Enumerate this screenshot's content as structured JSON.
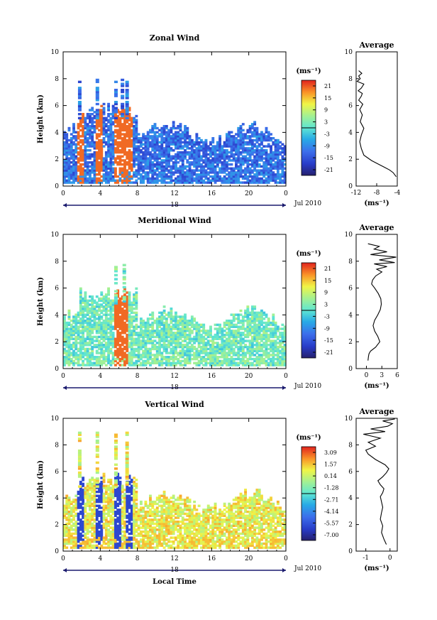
{
  "xlabel": "Local Time",
  "date_label": "Jul 2010",
  "day_label": "18",
  "chart_data": [
    {
      "type": "heatmap",
      "title": "Zonal Wind",
      "ylabel": "Height (km)",
      "xlim": [
        0,
        24
      ],
      "ylim": [
        0,
        10
      ],
      "xticks": [
        "0",
        "4",
        "8",
        "12",
        "16",
        "20",
        "0"
      ],
      "yticks": [
        "0",
        "2",
        "4",
        "6",
        "8",
        "10"
      ],
      "colorbar": {
        "unit": "(ms⁻¹)",
        "ticks": [
          "21",
          "15",
          "9",
          "3",
          "-3",
          "-9",
          "-15",
          "-21"
        ],
        "range": [
          -24,
          24
        ]
      },
      "data_extent": {
        "x": [
          0,
          24
        ],
        "y": [
          0.2,
          5
        ],
        "peak_y": 8
      },
      "dominant_value": -12,
      "strong_columns_x": [
        1.8,
        3.7,
        5.7,
        6.4,
        6.9
      ],
      "avg_profile": {
        "title": "Average",
        "xlabel": "(ms⁻¹)",
        "xlim": [
          -12,
          -4
        ],
        "ylim": [
          0,
          10
        ],
        "xticks": [
          "-12",
          "-8",
          "-4"
        ],
        "yticks": [
          "0",
          "2",
          "4",
          "6",
          "8",
          "10"
        ],
        "x": [
          -4.2,
          -4.8,
          -5.5,
          -6.5,
          -7.5,
          -9,
          -10.5,
          -11,
          -11.3,
          -11,
          -10.5,
          -11.2,
          -10.8,
          -11.3,
          -10.7,
          -11.5,
          -11,
          -10.8,
          -11.6,
          -11,
          -10.5,
          -11.8,
          -11.2,
          -11.5,
          -10.9,
          -11.5
        ],
        "y": [
          0.7,
          1,
          1.2,
          1.4,
          1.6,
          1.9,
          2.3,
          2.8,
          3.3,
          3.8,
          4.3,
          4.8,
          5.3,
          5.7,
          6.1,
          6.4,
          6.7,
          6.9,
          7.1,
          7.3,
          7.6,
          7.8,
          8.0,
          8.2,
          8.4,
          8.6
        ]
      }
    },
    {
      "type": "heatmap",
      "title": "Meridional Wind",
      "ylabel": "Height (km)",
      "xlim": [
        0,
        24
      ],
      "ylim": [
        0,
        10
      ],
      "xticks": [
        "0",
        "4",
        "8",
        "12",
        "16",
        "20",
        "0"
      ],
      "yticks": [
        "0",
        "2",
        "4",
        "6",
        "8",
        "10"
      ],
      "colorbar": {
        "unit": "(ms⁻¹)",
        "ticks": [
          "21",
          "15",
          "9",
          "3",
          "-3",
          "-9",
          "-15",
          "-21"
        ],
        "range": [
          -24,
          24
        ]
      },
      "data_extent": {
        "x": [
          0,
          24
        ],
        "y": [
          0.2,
          4.8
        ],
        "peak_y": 7.7
      },
      "dominant_value": 2,
      "strong_columns_x": [
        5.7,
        6.6
      ],
      "avg_profile": {
        "title": "Average",
        "xlabel": "(ms⁻¹)",
        "xlim": [
          -2,
          6
        ],
        "ylim": [
          0,
          10
        ],
        "xticks": [
          "0",
          "3",
          "6"
        ],
        "yticks": [
          "0",
          "2",
          "4",
          "6",
          "8",
          "10"
        ],
        "x": [
          0.3,
          0.4,
          0.5,
          0.8,
          1.8,
          2.6,
          2.2,
          1.6,
          1.3,
          1.6,
          2.2,
          2.7,
          2.9,
          2.8,
          2.3,
          1.6,
          1.0,
          1.2,
          1.8,
          3,
          2,
          4,
          1.5,
          5.5,
          2.5,
          5.8,
          0.8,
          4,
          1.5,
          2.5,
          0.3
        ],
        "y": [
          0.6,
          0.9,
          1.1,
          1.3,
          1.6,
          2.0,
          2.4,
          2.8,
          3.2,
          3.6,
          4.0,
          4.4,
          4.8,
          5.2,
          5.6,
          6.0,
          6.3,
          6.6,
          6.9,
          7.2,
          7.4,
          7.6,
          7.8,
          7.9,
          8.1,
          8.3,
          8.5,
          8.7,
          8.9,
          9.1,
          9.3
        ]
      }
    },
    {
      "type": "heatmap",
      "title": "Vertical Wind",
      "ylabel": "Height (km)",
      "xlim": [
        0,
        24
      ],
      "ylim": [
        0,
        10
      ],
      "xticks": [
        "0",
        "4",
        "8",
        "12",
        "16",
        "20",
        "0"
      ],
      "yticks": [
        "0",
        "2",
        "4",
        "6",
        "8",
        "10"
      ],
      "colorbar": {
        "unit": "(ms⁻¹)",
        "ticks": [
          "3.09",
          "1.57",
          "0.14",
          "-1.28",
          "-2.71",
          "-4.14",
          "-5.57",
          "-7.00"
        ],
        "range": [
          -7.7,
          3.8
        ]
      },
      "data_extent": {
        "x": [
          0,
          24
        ],
        "y": [
          0.2,
          4.8
        ],
        "peak_y": 9
      },
      "dominant_value": 0.8,
      "strong_columns_x": [
        1.8,
        3.7,
        5.7,
        6.9
      ],
      "avg_profile": {
        "title": "Average",
        "xlabel": "(ms⁻¹)",
        "xlim": [
          -1.4,
          0.3
        ],
        "ylim": [
          0,
          10
        ],
        "xticks": [
          "-1",
          "0"
        ],
        "yticks": [
          "0",
          "2",
          "4",
          "6",
          "8",
          "10"
        ],
        "x": [
          -0.15,
          -0.25,
          -0.35,
          -0.3,
          -0.4,
          -0.35,
          -0.3,
          -0.35,
          -0.4,
          -0.3,
          -0.25,
          -0.4,
          -0.5,
          -0.3,
          -0.15,
          -0.05,
          -0.2,
          -0.6,
          -0.9,
          -1.0,
          -0.6,
          -0.9,
          -0.4,
          -1.1,
          -0.2,
          -0.8,
          -0.1,
          0.1,
          -0.3,
          0.2
        ],
        "y": [
          0.5,
          0.9,
          1.4,
          1.9,
          2.4,
          2.9,
          3.3,
          3.7,
          4.1,
          4.4,
          4.7,
          5.0,
          5.3,
          5.6,
          5.9,
          6.2,
          6.5,
          6.9,
          7.3,
          7.6,
          7.9,
          8.2,
          8.5,
          8.8,
          9.0,
          9.2,
          9.4,
          9.6,
          9.8,
          9.95
        ]
      }
    }
  ]
}
